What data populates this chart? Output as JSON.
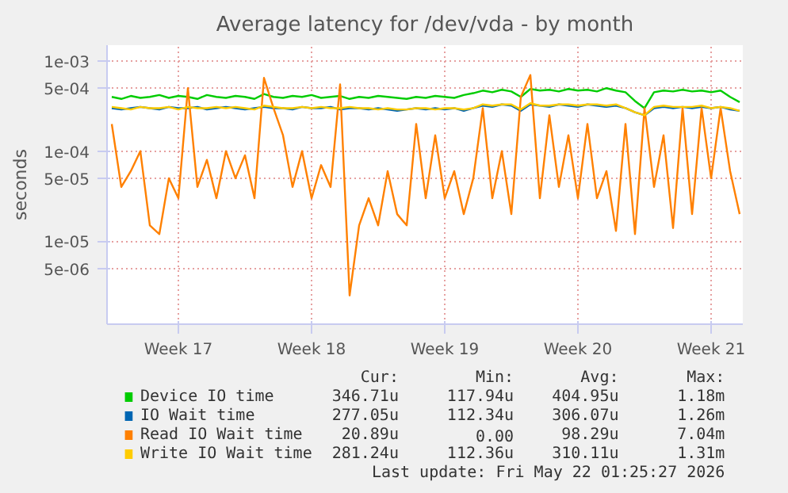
{
  "chart_data": {
    "type": "line",
    "title": "Average latency for /dev/vda - by month",
    "ylabel": "seconds",
    "log": "y",
    "grid": true,
    "legend": "bottom",
    "line_style": "solid",
    "xlim": [
      "2026-04-19T18:00",
      "2026-05-23T04:00"
    ],
    "xticks": [
      {
        "value": "2026-04-23T12:00",
        "label": "Week 17"
      },
      {
        "value": "2026-04-30T12:00",
        "label": "Week 18"
      },
      {
        "value": "2026-05-07T12:00",
        "label": "Week 19"
      },
      {
        "value": "2026-05-14T12:00",
        "label": "Week 20"
      },
      {
        "value": "2026-05-21T12:00",
        "label": "Week 21"
      }
    ],
    "ylim": [
      1.2e-06,
      0.0015
    ],
    "yticks": [
      {
        "value": 0.001,
        "label": "1e-03"
      },
      {
        "value": 0.0005,
        "label": "5e-04"
      },
      {
        "value": 0.0001,
        "label": "1e-04"
      },
      {
        "value": 5e-05,
        "label": "5e-05"
      },
      {
        "value": 1e-05,
        "label": "1e-05"
      },
      {
        "value": 5e-06,
        "label": "5e-06"
      }
    ],
    "x": [
      "2026-04-20T00:00",
      "2026-04-20T12:00",
      "2026-04-21T00:00",
      "2026-04-21T12:00",
      "2026-04-22T00:00",
      "2026-04-22T12:00",
      "2026-04-23T00:00",
      "2026-04-23T12:00",
      "2026-04-24T00:00",
      "2026-04-24T12:00",
      "2026-04-25T00:00",
      "2026-04-25T12:00",
      "2026-04-26T00:00",
      "2026-04-26T12:00",
      "2026-04-27T00:00",
      "2026-04-27T12:00",
      "2026-04-28T00:00",
      "2026-04-28T12:00",
      "2026-04-29T00:00",
      "2026-04-29T12:00",
      "2026-04-30T00:00",
      "2026-04-30T12:00",
      "2026-05-01T00:00",
      "2026-05-01T12:00",
      "2026-05-02T00:00",
      "2026-05-02T12:00",
      "2026-05-03T00:00",
      "2026-05-03T12:00",
      "2026-05-04T00:00",
      "2026-05-04T12:00",
      "2026-05-05T00:00",
      "2026-05-05T12:00",
      "2026-05-06T00:00",
      "2026-05-06T12:00",
      "2026-05-07T00:00",
      "2026-05-07T12:00",
      "2026-05-08T00:00",
      "2026-05-08T12:00",
      "2026-05-09T00:00",
      "2026-05-09T12:00",
      "2026-05-10T00:00",
      "2026-05-10T12:00",
      "2026-05-11T00:00",
      "2026-05-11T12:00",
      "2026-05-12T00:00",
      "2026-05-12T12:00",
      "2026-05-13T00:00",
      "2026-05-13T12:00",
      "2026-05-14T00:00",
      "2026-05-14T12:00",
      "2026-05-15T00:00",
      "2026-05-15T12:00",
      "2026-05-16T00:00",
      "2026-05-16T12:00",
      "2026-05-17T00:00",
      "2026-05-17T12:00",
      "2026-05-18T00:00",
      "2026-05-18T12:00",
      "2026-05-19T00:00",
      "2026-05-19T12:00",
      "2026-05-20T00:00",
      "2026-05-20T12:00",
      "2026-05-21T00:00",
      "2026-05-21T12:00",
      "2026-05-22T00:00",
      "2026-05-22T12:00",
      "2026-05-23T00:00"
    ],
    "series": [
      {
        "name": "Device IO time",
        "color": "#00cc00",
        "values": [
          0.0004,
          0.00038,
          0.00041,
          0.00039,
          0.0004,
          0.00042,
          0.00039,
          0.00041,
          0.0004,
          0.00038,
          0.00042,
          0.0004,
          0.00039,
          0.00041,
          0.0004,
          0.00038,
          0.00043,
          0.0004,
          0.00039,
          0.00041,
          0.0004,
          0.00042,
          0.00039,
          0.0004,
          0.00041,
          0.00038,
          0.0004,
          0.00039,
          0.00041,
          0.0004,
          0.00039,
          0.00038,
          0.0004,
          0.00039,
          0.00041,
          0.0004,
          0.00039,
          0.00042,
          0.00044,
          0.00047,
          0.00045,
          0.00048,
          0.00046,
          0.0004,
          0.00049,
          0.00047,
          0.00048,
          0.00046,
          0.00049,
          0.00047,
          0.00048,
          0.00046,
          0.0005,
          0.00047,
          0.00045,
          0.00036,
          0.0003,
          0.00045,
          0.00047,
          0.00046,
          0.00048,
          0.00046,
          0.00047,
          0.00045,
          0.00047,
          0.0004,
          0.00035
        ]
      },
      {
        "name": "IO Wait time",
        "color": "#0066b3",
        "values": [
          0.0003,
          0.00029,
          0.0003,
          0.00031,
          0.0003,
          0.00029,
          0.00031,
          0.0003,
          0.0003,
          0.00031,
          0.00029,
          0.0003,
          0.00031,
          0.0003,
          0.00029,
          0.0003,
          0.00031,
          0.0003,
          0.0003,
          0.00029,
          0.00031,
          0.0003,
          0.0003,
          0.00031,
          0.00029,
          0.0003,
          0.0003,
          0.00029,
          0.0003,
          0.00029,
          0.00028,
          0.00029,
          0.0003,
          0.00029,
          0.0003,
          0.00029,
          0.0003,
          0.00028,
          0.0003,
          0.00032,
          0.00031,
          0.00033,
          0.00032,
          0.00028,
          0.00033,
          0.00032,
          0.00031,
          0.00033,
          0.00032,
          0.00031,
          0.00033,
          0.00032,
          0.00031,
          0.00032,
          0.0003,
          0.00027,
          0.00025,
          0.0003,
          0.00031,
          0.0003,
          0.00031,
          0.0003,
          0.00031,
          0.0003,
          0.00031,
          0.00029,
          0.00028
        ]
      },
      {
        "name": "Read IO Wait time",
        "color": "#ff8000",
        "values": [
          0.0002,
          4e-05,
          6e-05,
          0.0001,
          1.5e-05,
          1.2e-05,
          5e-05,
          3e-05,
          0.0005,
          4e-05,
          8e-05,
          3e-05,
          0.0001,
          5e-05,
          9e-05,
          3e-05,
          0.00065,
          0.0003,
          0.00015,
          4e-05,
          0.0001,
          3e-05,
          7e-05,
          4e-05,
          0.00055,
          2.5e-06,
          1.5e-05,
          3e-05,
          1.5e-05,
          6e-05,
          2e-05,
          1.5e-05,
          0.0002,
          3e-05,
          0.00015,
          3e-05,
          6e-05,
          2e-05,
          5e-05,
          0.0003,
          3e-05,
          0.0001,
          2e-05,
          0.0004,
          0.0007,
          3e-05,
          0.00025,
          4e-05,
          0.00015,
          3e-05,
          0.0002,
          3e-05,
          6e-05,
          1.3e-05,
          0.0002,
          1.2e-05,
          0.0003,
          4e-05,
          0.00015,
          1.4e-05,
          0.0003,
          2e-05,
          0.0003,
          5e-05,
          0.0003,
          6e-05,
          2e-05
        ]
      },
      {
        "name": "Write IO Wait time",
        "color": "#ffcc00",
        "values": [
          0.00031,
          0.0003,
          0.00029,
          0.00031,
          0.0003,
          0.0003,
          0.00031,
          0.00029,
          0.00031,
          0.0003,
          0.0003,
          0.00031,
          0.0003,
          0.00031,
          0.0003,
          0.00029,
          0.00032,
          0.00031,
          0.0003,
          0.0003,
          0.00031,
          0.0003,
          0.00031,
          0.0003,
          0.0003,
          0.00031,
          0.0003,
          0.0003,
          0.00029,
          0.0003,
          0.00029,
          0.00029,
          0.0003,
          0.0003,
          0.00029,
          0.0003,
          0.0003,
          0.00029,
          0.0003,
          0.00033,
          0.00032,
          0.00033,
          0.00033,
          0.00029,
          0.00034,
          0.00032,
          0.00032,
          0.00033,
          0.00033,
          0.00032,
          0.00033,
          0.00033,
          0.00032,
          0.00033,
          0.0003,
          0.00027,
          0.00025,
          0.00031,
          0.00032,
          0.00031,
          0.00031,
          0.00031,
          0.00032,
          0.0003,
          0.00031,
          0.0003,
          0.00028
        ]
      }
    ],
    "annotations": [
      "Cur:",
      "Min:",
      "Avg:",
      "Max:",
      "346.71u",
      "117.94u",
      "404.95u",
      "1.18m",
      "277.05u",
      "112.34u",
      "306.07u",
      "1.26m",
      "20.89u",
      "0.00",
      "98.29u",
      "7.04m",
      "281.24u",
      "112.36u",
      "310.11u",
      "1.31m",
      "Last update: Fri May 22 01:25:27 2026"
    ]
  }
}
